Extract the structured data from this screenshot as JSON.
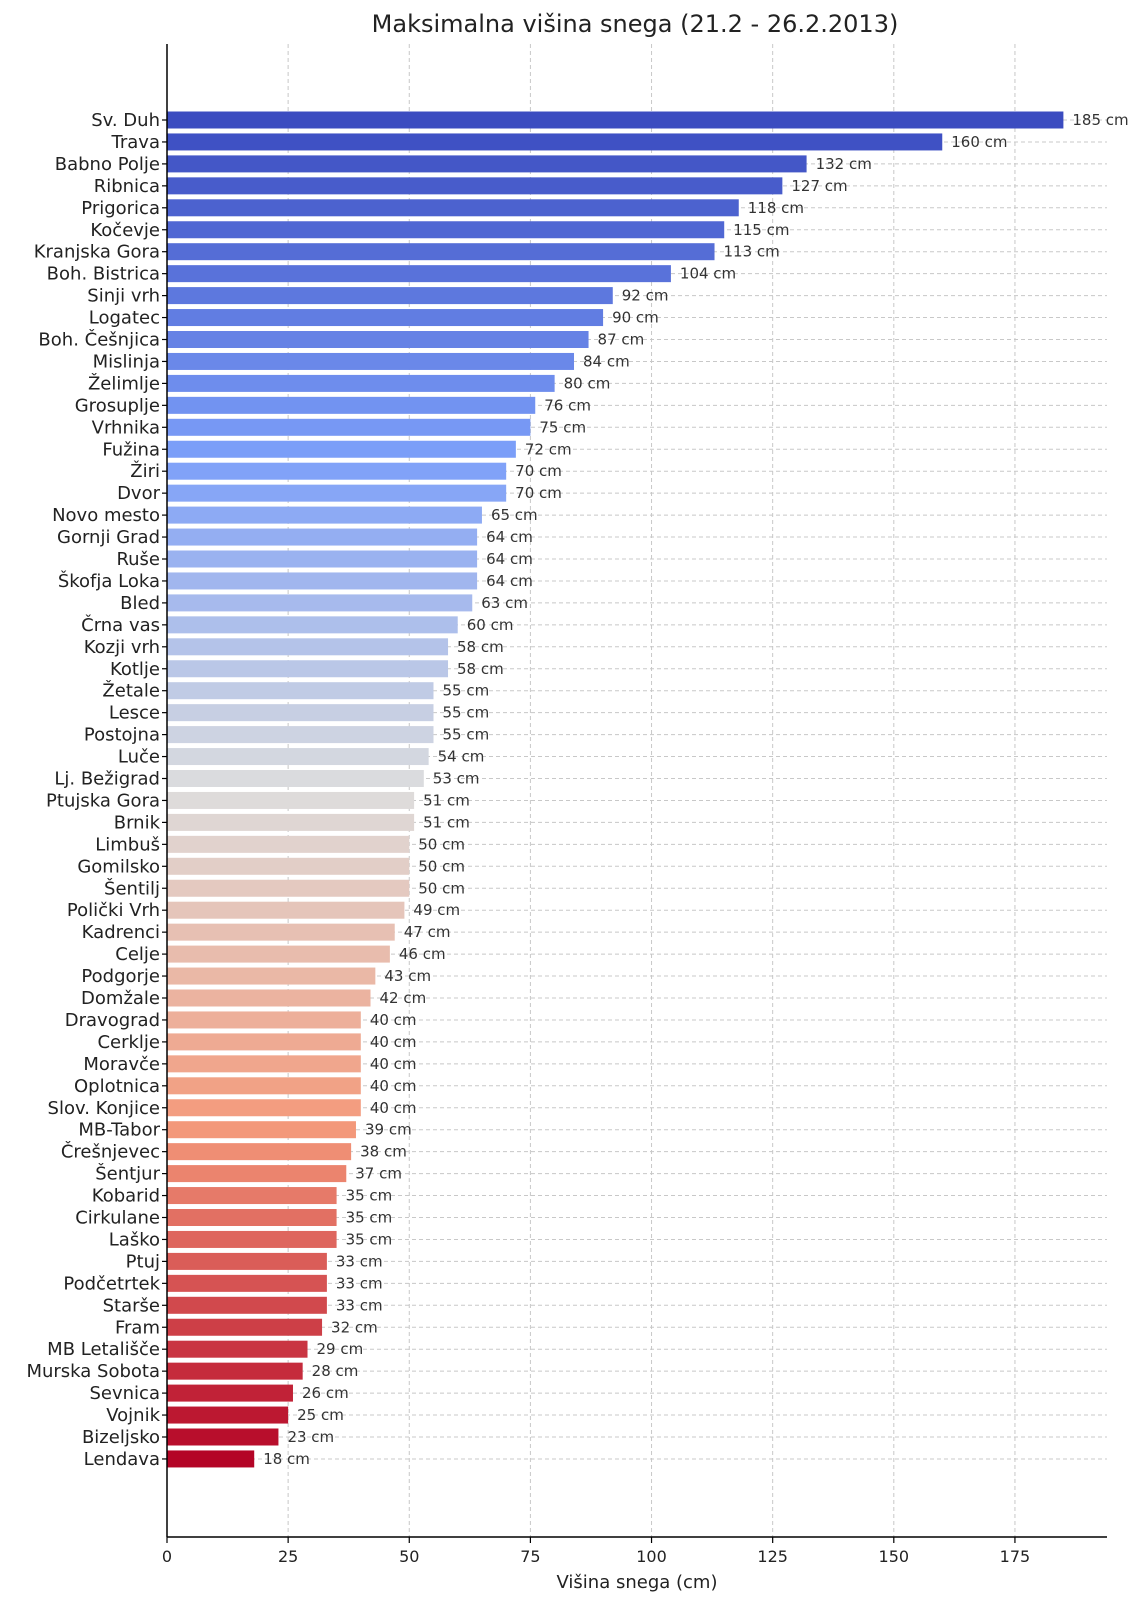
{
  "chart_data": {
    "type": "bar",
    "orientation": "horizontal",
    "title": "Maksimalna višina snega (21.2 - 26.2.2013)",
    "xlabel": "Višina snega (cm)",
    "ylabel": "",
    "xlim": [
      0,
      194
    ],
    "xticks": [
      0,
      25,
      50,
      75,
      100,
      125,
      150,
      175
    ],
    "grid": true,
    "value_suffix": " cm",
    "colormap": "coolwarm",
    "categories": [
      "Sv. Duh",
      "Trava",
      "Babno Polje",
      "Ribnica",
      "Prigorica",
      "Kočevje",
      "Kranjska Gora",
      "Boh. Bistrica",
      "Sinji vrh",
      "Logatec",
      "Boh. Češnjica",
      "Mislinja",
      "Želimlje",
      "Grosuplje",
      "Vrhnika",
      "Fužina",
      "Žiri",
      "Dvor",
      "Novo mesto",
      "Gornji Grad",
      "Ruše",
      "Škofja Loka",
      "Bled",
      "Črna vas",
      "Kozji vrh",
      "Kotlje",
      "Žetale",
      "Lesce",
      "Postojna",
      "Luče",
      "Lj. Bežigrad",
      "Ptujska Gora",
      "Brnik",
      "Limbuš",
      "Gomilsko",
      "Šentilj",
      "Polički Vrh",
      "Kadrenci",
      "Celje",
      "Podgorje",
      "Domžale",
      "Dravograd",
      "Cerklje",
      "Moravče",
      "Oplotnica",
      "Slov. Konjice",
      "MB-Tabor",
      "Črešnjevec",
      "Šentjur",
      "Kobarid",
      "Cirkulane",
      "Laško",
      "Ptuj",
      "Podčetrtek",
      "Starše",
      "Fram",
      "MB Letališče",
      "Murska Sobota",
      "Sevnica",
      "Vojnik",
      "Bizeljsko",
      "Lendava"
    ],
    "values": [
      185,
      160,
      132,
      127,
      118,
      115,
      113,
      104,
      92,
      90,
      87,
      84,
      80,
      76,
      75,
      72,
      70,
      70,
      65,
      64,
      64,
      64,
      63,
      60,
      58,
      58,
      55,
      55,
      55,
      54,
      53,
      51,
      51,
      50,
      50,
      50,
      49,
      47,
      46,
      43,
      42,
      40,
      40,
      40,
      40,
      40,
      39,
      38,
      37,
      35,
      35,
      35,
      33,
      33,
      33,
      32,
      29,
      28,
      26,
      25,
      23,
      18
    ]
  }
}
